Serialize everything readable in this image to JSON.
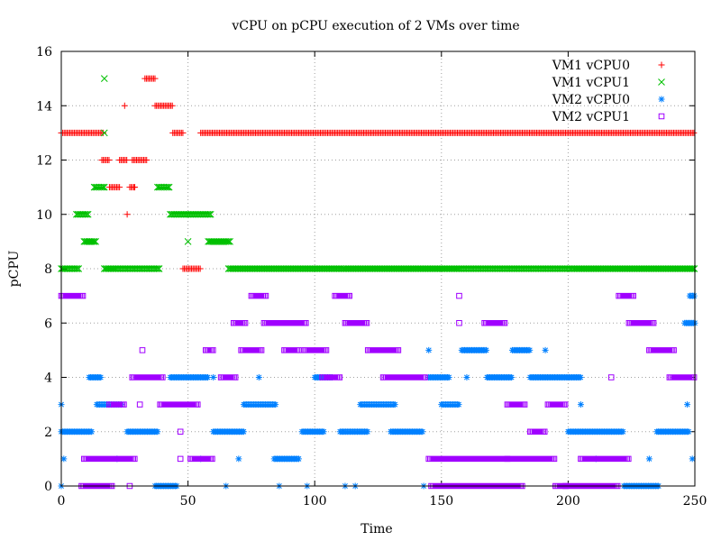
{
  "chart_data": {
    "type": "scatter",
    "title": "vCPU on pCPU execution of 2 VMs over time",
    "xlabel": "Time",
    "ylabel": "pCPU",
    "xlim": [
      0,
      250
    ],
    "ylim": [
      0,
      16
    ],
    "xticks": [
      0,
      50,
      100,
      150,
      200,
      250
    ],
    "yticks": [
      0,
      2,
      4,
      6,
      8,
      10,
      12,
      14,
      16
    ],
    "grid": true,
    "legend_position": "top-right",
    "series": [
      {
        "name": "VM1 vCPU0",
        "marker": "plus",
        "color": "#ff0000",
        "segments": [
          {
            "y": 13,
            "from": 0,
            "to": 17
          },
          {
            "y": 12,
            "from": 16,
            "to": 19
          },
          {
            "y": 11,
            "from": 19,
            "to": 23
          },
          {
            "y": 12,
            "from": 23,
            "to": 26
          },
          {
            "y": 11,
            "from": 27,
            "to": 29
          },
          {
            "y": 12,
            "from": 28,
            "to": 34
          },
          {
            "y": 15,
            "from": 33,
            "to": 37
          },
          {
            "y": 14,
            "from": 37,
            "to": 44
          },
          {
            "y": 13,
            "from": 44,
            "to": 48
          },
          {
            "y": 8,
            "from": 48,
            "to": 55
          },
          {
            "y": 13,
            "from": 55,
            "to": 250
          }
        ],
        "points": [
          {
            "x": 25,
            "y": 14
          },
          {
            "x": 26,
            "y": 10
          },
          {
            "x": 29,
            "y": 11
          }
        ]
      },
      {
        "name": "VM1 vCPU1",
        "marker": "cross",
        "color": "#00c000",
        "segments": [
          {
            "y": 8,
            "from": 0,
            "to": 7
          },
          {
            "y": 10,
            "from": 6,
            "to": 11
          },
          {
            "y": 9,
            "from": 9,
            "to": 14
          },
          {
            "y": 11,
            "from": 13,
            "to": 17
          },
          {
            "y": 8,
            "from": 17,
            "to": 39
          },
          {
            "y": 11,
            "from": 38,
            "to": 43
          },
          {
            "y": 10,
            "from": 43,
            "to": 59
          },
          {
            "y": 9,
            "from": 58,
            "to": 67
          },
          {
            "y": 8,
            "from": 66,
            "to": 250
          }
        ],
        "points": [
          {
            "x": 17,
            "y": 15
          },
          {
            "x": 50,
            "y": 9
          },
          {
            "x": 17,
            "y": 13
          }
        ]
      },
      {
        "name": "VM2 vCPU0",
        "marker": "star",
        "color": "#0080ff",
        "segments": [
          {
            "y": 2,
            "from": 0,
            "to": 12
          },
          {
            "y": 3,
            "from": 14,
            "to": 24
          },
          {
            "y": 4,
            "from": 11,
            "to": 16
          },
          {
            "y": 2,
            "from": 26,
            "to": 38
          },
          {
            "y": 0,
            "from": 37,
            "to": 46
          },
          {
            "y": 4,
            "from": 43,
            "to": 58
          },
          {
            "y": 2,
            "from": 60,
            "to": 72
          },
          {
            "y": 3,
            "from": 72,
            "to": 85
          },
          {
            "y": 1,
            "from": 84,
            "to": 94
          },
          {
            "y": 2,
            "from": 95,
            "to": 104
          },
          {
            "y": 4,
            "from": 100,
            "to": 107
          },
          {
            "y": 2,
            "from": 110,
            "to": 121
          },
          {
            "y": 3,
            "from": 118,
            "to": 132
          },
          {
            "y": 2,
            "from": 130,
            "to": 143
          },
          {
            "y": 4,
            "from": 145,
            "to": 153
          },
          {
            "y": 3,
            "from": 150,
            "to": 157
          },
          {
            "y": 5,
            "from": 158,
            "to": 168
          },
          {
            "y": 4,
            "from": 168,
            "to": 178
          },
          {
            "y": 5,
            "from": 178,
            "to": 185
          },
          {
            "y": 4,
            "from": 185,
            "to": 205
          },
          {
            "y": 2,
            "from": 200,
            "to": 222
          },
          {
            "y": 0,
            "from": 222,
            "to": 236
          },
          {
            "y": 2,
            "from": 235,
            "to": 248
          },
          {
            "y": 6,
            "from": 246,
            "to": 250
          },
          {
            "y": 7,
            "from": 248,
            "to": 250
          }
        ],
        "points": [
          {
            "x": 0,
            "y": 3
          },
          {
            "x": 1,
            "y": 1
          },
          {
            "x": 0,
            "y": 0
          },
          {
            "x": 22,
            "y": 1
          },
          {
            "x": 55,
            "y": 1
          },
          {
            "x": 60,
            "y": 4
          },
          {
            "x": 70,
            "y": 1
          },
          {
            "x": 65,
            "y": 0
          },
          {
            "x": 78,
            "y": 4
          },
          {
            "x": 86,
            "y": 0
          },
          {
            "x": 97,
            "y": 0
          },
          {
            "x": 112,
            "y": 0
          },
          {
            "x": 116,
            "y": 0
          },
          {
            "x": 143,
            "y": 0
          },
          {
            "x": 145,
            "y": 5
          },
          {
            "x": 160,
            "y": 4
          },
          {
            "x": 191,
            "y": 5
          },
          {
            "x": 205,
            "y": 3
          },
          {
            "x": 211,
            "y": 1
          },
          {
            "x": 232,
            "y": 1
          },
          {
            "x": 247,
            "y": 3
          },
          {
            "x": 249,
            "y": 1
          }
        ]
      },
      {
        "name": "VM2 vCPU1",
        "marker": "square",
        "color": "#a000ff",
        "segments": [
          {
            "y": 7,
            "from": 0,
            "to": 9
          },
          {
            "y": 0,
            "from": 8,
            "to": 20
          },
          {
            "y": 1,
            "from": 9,
            "to": 29
          },
          {
            "y": 3,
            "from": 19,
            "to": 25
          },
          {
            "y": 4,
            "from": 28,
            "to": 40
          },
          {
            "y": 3,
            "from": 39,
            "to": 54
          },
          {
            "y": 1,
            "from": 51,
            "to": 60
          },
          {
            "y": 5,
            "from": 57,
            "to": 60
          },
          {
            "y": 4,
            "from": 63,
            "to": 69
          },
          {
            "y": 6,
            "from": 68,
            "to": 73
          },
          {
            "y": 5,
            "from": 71,
            "to": 79
          },
          {
            "y": 7,
            "from": 75,
            "to": 81
          },
          {
            "y": 6,
            "from": 80,
            "to": 97
          },
          {
            "y": 5,
            "from": 88,
            "to": 94
          },
          {
            "y": 5,
            "from": 96,
            "to": 105
          },
          {
            "y": 4,
            "from": 103,
            "to": 110
          },
          {
            "y": 7,
            "from": 108,
            "to": 114
          },
          {
            "y": 6,
            "from": 112,
            "to": 121
          },
          {
            "y": 5,
            "from": 121,
            "to": 133
          },
          {
            "y": 4,
            "from": 127,
            "to": 144
          },
          {
            "y": 0,
            "from": 146,
            "to": 182
          },
          {
            "y": 1,
            "from": 145,
            "to": 195
          },
          {
            "y": 6,
            "from": 167,
            "to": 175
          },
          {
            "y": 3,
            "from": 176,
            "to": 183
          },
          {
            "y": 2,
            "from": 185,
            "to": 191
          },
          {
            "y": 3,
            "from": 192,
            "to": 199
          },
          {
            "y": 0,
            "from": 195,
            "to": 220
          },
          {
            "y": 1,
            "from": 205,
            "to": 224
          },
          {
            "y": 7,
            "from": 220,
            "to": 226
          },
          {
            "y": 6,
            "from": 224,
            "to": 234
          },
          {
            "y": 5,
            "from": 232,
            "to": 242
          },
          {
            "y": 4,
            "from": 240,
            "to": 250
          }
        ],
        "points": [
          {
            "x": 27,
            "y": 0
          },
          {
            "x": 31,
            "y": 3
          },
          {
            "x": 32,
            "y": 5
          },
          {
            "x": 47,
            "y": 2
          },
          {
            "x": 47,
            "y": 1
          },
          {
            "x": 157,
            "y": 7
          },
          {
            "x": 157,
            "y": 6
          },
          {
            "x": 176,
            "y": 1
          },
          {
            "x": 217,
            "y": 4
          },
          {
            "x": 199,
            "y": 0
          }
        ]
      }
    ]
  }
}
